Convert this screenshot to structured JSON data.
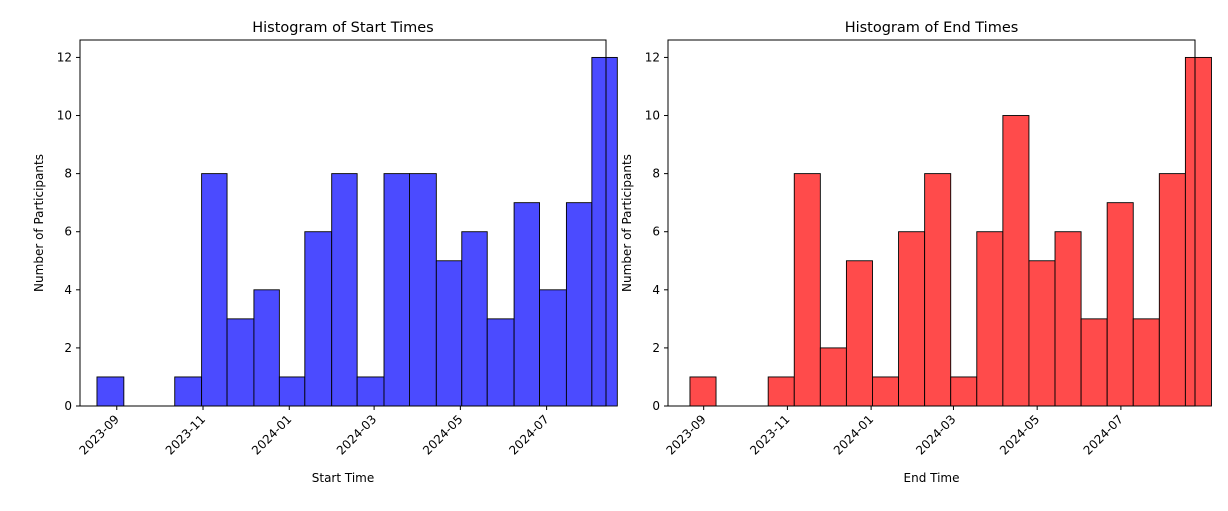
{
  "chart_data": [
    {
      "type": "bar",
      "title": "Histogram of Start Times",
      "xlabel": "Start Time",
      "ylabel": "Number of Participants",
      "x_ticks": [
        "2023-09",
        "2023-11",
        "2024-01",
        "2024-03",
        "2024-05",
        "2024-07"
      ],
      "y_ticks": [
        "0",
        "2",
        "4",
        "6",
        "8",
        "10",
        "12"
      ],
      "ylim": [
        0,
        12.6
      ],
      "xlim": [
        "2023-08-06",
        "2024-08-12"
      ],
      "bins": [
        {
          "start": "2023-08-18",
          "end": "2023-09-06",
          "count": 1
        },
        {
          "start": "2023-09-06",
          "end": "2023-09-24",
          "count": 0
        },
        {
          "start": "2023-09-24",
          "end": "2023-10-12",
          "count": 0
        },
        {
          "start": "2023-10-12",
          "end": "2023-10-31",
          "count": 1
        },
        {
          "start": "2023-10-31",
          "end": "2023-11-18",
          "count": 8
        },
        {
          "start": "2023-11-18",
          "end": "2023-12-07",
          "count": 3
        },
        {
          "start": "2023-12-07",
          "end": "2023-12-25",
          "count": 4
        },
        {
          "start": "2023-12-25",
          "end": "2024-01-12",
          "count": 1
        },
        {
          "start": "2024-01-12",
          "end": "2024-01-31",
          "count": 6
        },
        {
          "start": "2024-01-31",
          "end": "2024-02-18",
          "count": 8
        },
        {
          "start": "2024-02-18",
          "end": "2024-03-08",
          "count": 1
        },
        {
          "start": "2024-03-08",
          "end": "2024-03-26",
          "count": 8
        },
        {
          "start": "2024-03-26",
          "end": "2024-04-14",
          "count": 8
        },
        {
          "start": "2024-04-14",
          "end": "2024-05-02",
          "count": 5
        },
        {
          "start": "2024-05-02",
          "end": "2024-05-20",
          "count": 6
        },
        {
          "start": "2024-05-20",
          "end": "2024-06-08",
          "count": 3
        },
        {
          "start": "2024-06-08",
          "end": "2024-06-26",
          "count": 7
        },
        {
          "start": "2024-06-26",
          "end": "2024-07-15",
          "count": 4
        },
        {
          "start": "2024-07-15",
          "end": "2024-08-02",
          "count": 7
        },
        {
          "start": "2024-08-02",
          "end": "2024-08-20",
          "count": 12
        }
      ],
      "bar_color": "#4b4bff",
      "edge_color": "#000000",
      "grid": false
    },
    {
      "type": "bar",
      "title": "Histogram of End Times",
      "xlabel": "End Time",
      "ylabel": "Number of Participants",
      "x_ticks": [
        "2023-09",
        "2023-11",
        "2024-01",
        "2024-03",
        "2024-05",
        "2024-07"
      ],
      "y_ticks": [
        "0",
        "2",
        "4",
        "6",
        "8",
        "10",
        "12"
      ],
      "ylim": [
        0,
        12.6
      ],
      "xlim": [
        "2023-08-06",
        "2024-08-24"
      ],
      "bins": [
        {
          "start": "2023-08-22",
          "end": "2023-09-10",
          "count": 1
        },
        {
          "start": "2023-09-10",
          "end": "2023-09-29",
          "count": 0
        },
        {
          "start": "2023-09-29",
          "end": "2023-10-18",
          "count": 0
        },
        {
          "start": "2023-10-18",
          "end": "2023-11-06",
          "count": 1
        },
        {
          "start": "2023-11-06",
          "end": "2023-11-25",
          "count": 8
        },
        {
          "start": "2023-11-25",
          "end": "2023-12-14",
          "count": 2
        },
        {
          "start": "2023-12-14",
          "end": "2024-01-02",
          "count": 5
        },
        {
          "start": "2024-01-02",
          "end": "2024-01-21",
          "count": 1
        },
        {
          "start": "2024-01-21",
          "end": "2024-02-09",
          "count": 6
        },
        {
          "start": "2024-02-09",
          "end": "2024-02-28",
          "count": 8
        },
        {
          "start": "2024-02-28",
          "end": "2024-03-18",
          "count": 1
        },
        {
          "start": "2024-03-18",
          "end": "2024-04-06",
          "count": 6
        },
        {
          "start": "2024-04-06",
          "end": "2024-04-25",
          "count": 10
        },
        {
          "start": "2024-04-25",
          "end": "2024-05-14",
          "count": 5
        },
        {
          "start": "2024-05-14",
          "end": "2024-06-02",
          "count": 6
        },
        {
          "start": "2024-06-02",
          "end": "2024-06-21",
          "count": 3
        },
        {
          "start": "2024-06-21",
          "end": "2024-07-10",
          "count": 7
        },
        {
          "start": "2024-07-10",
          "end": "2024-07-29",
          "count": 3
        },
        {
          "start": "2024-07-29",
          "end": "2024-08-17",
          "count": 8
        },
        {
          "start": "2024-08-17",
          "end": "2024-09-05",
          "count": 12
        }
      ],
      "bar_color": "#ff4b4b",
      "edge_color": "#000000",
      "grid": false
    }
  ]
}
